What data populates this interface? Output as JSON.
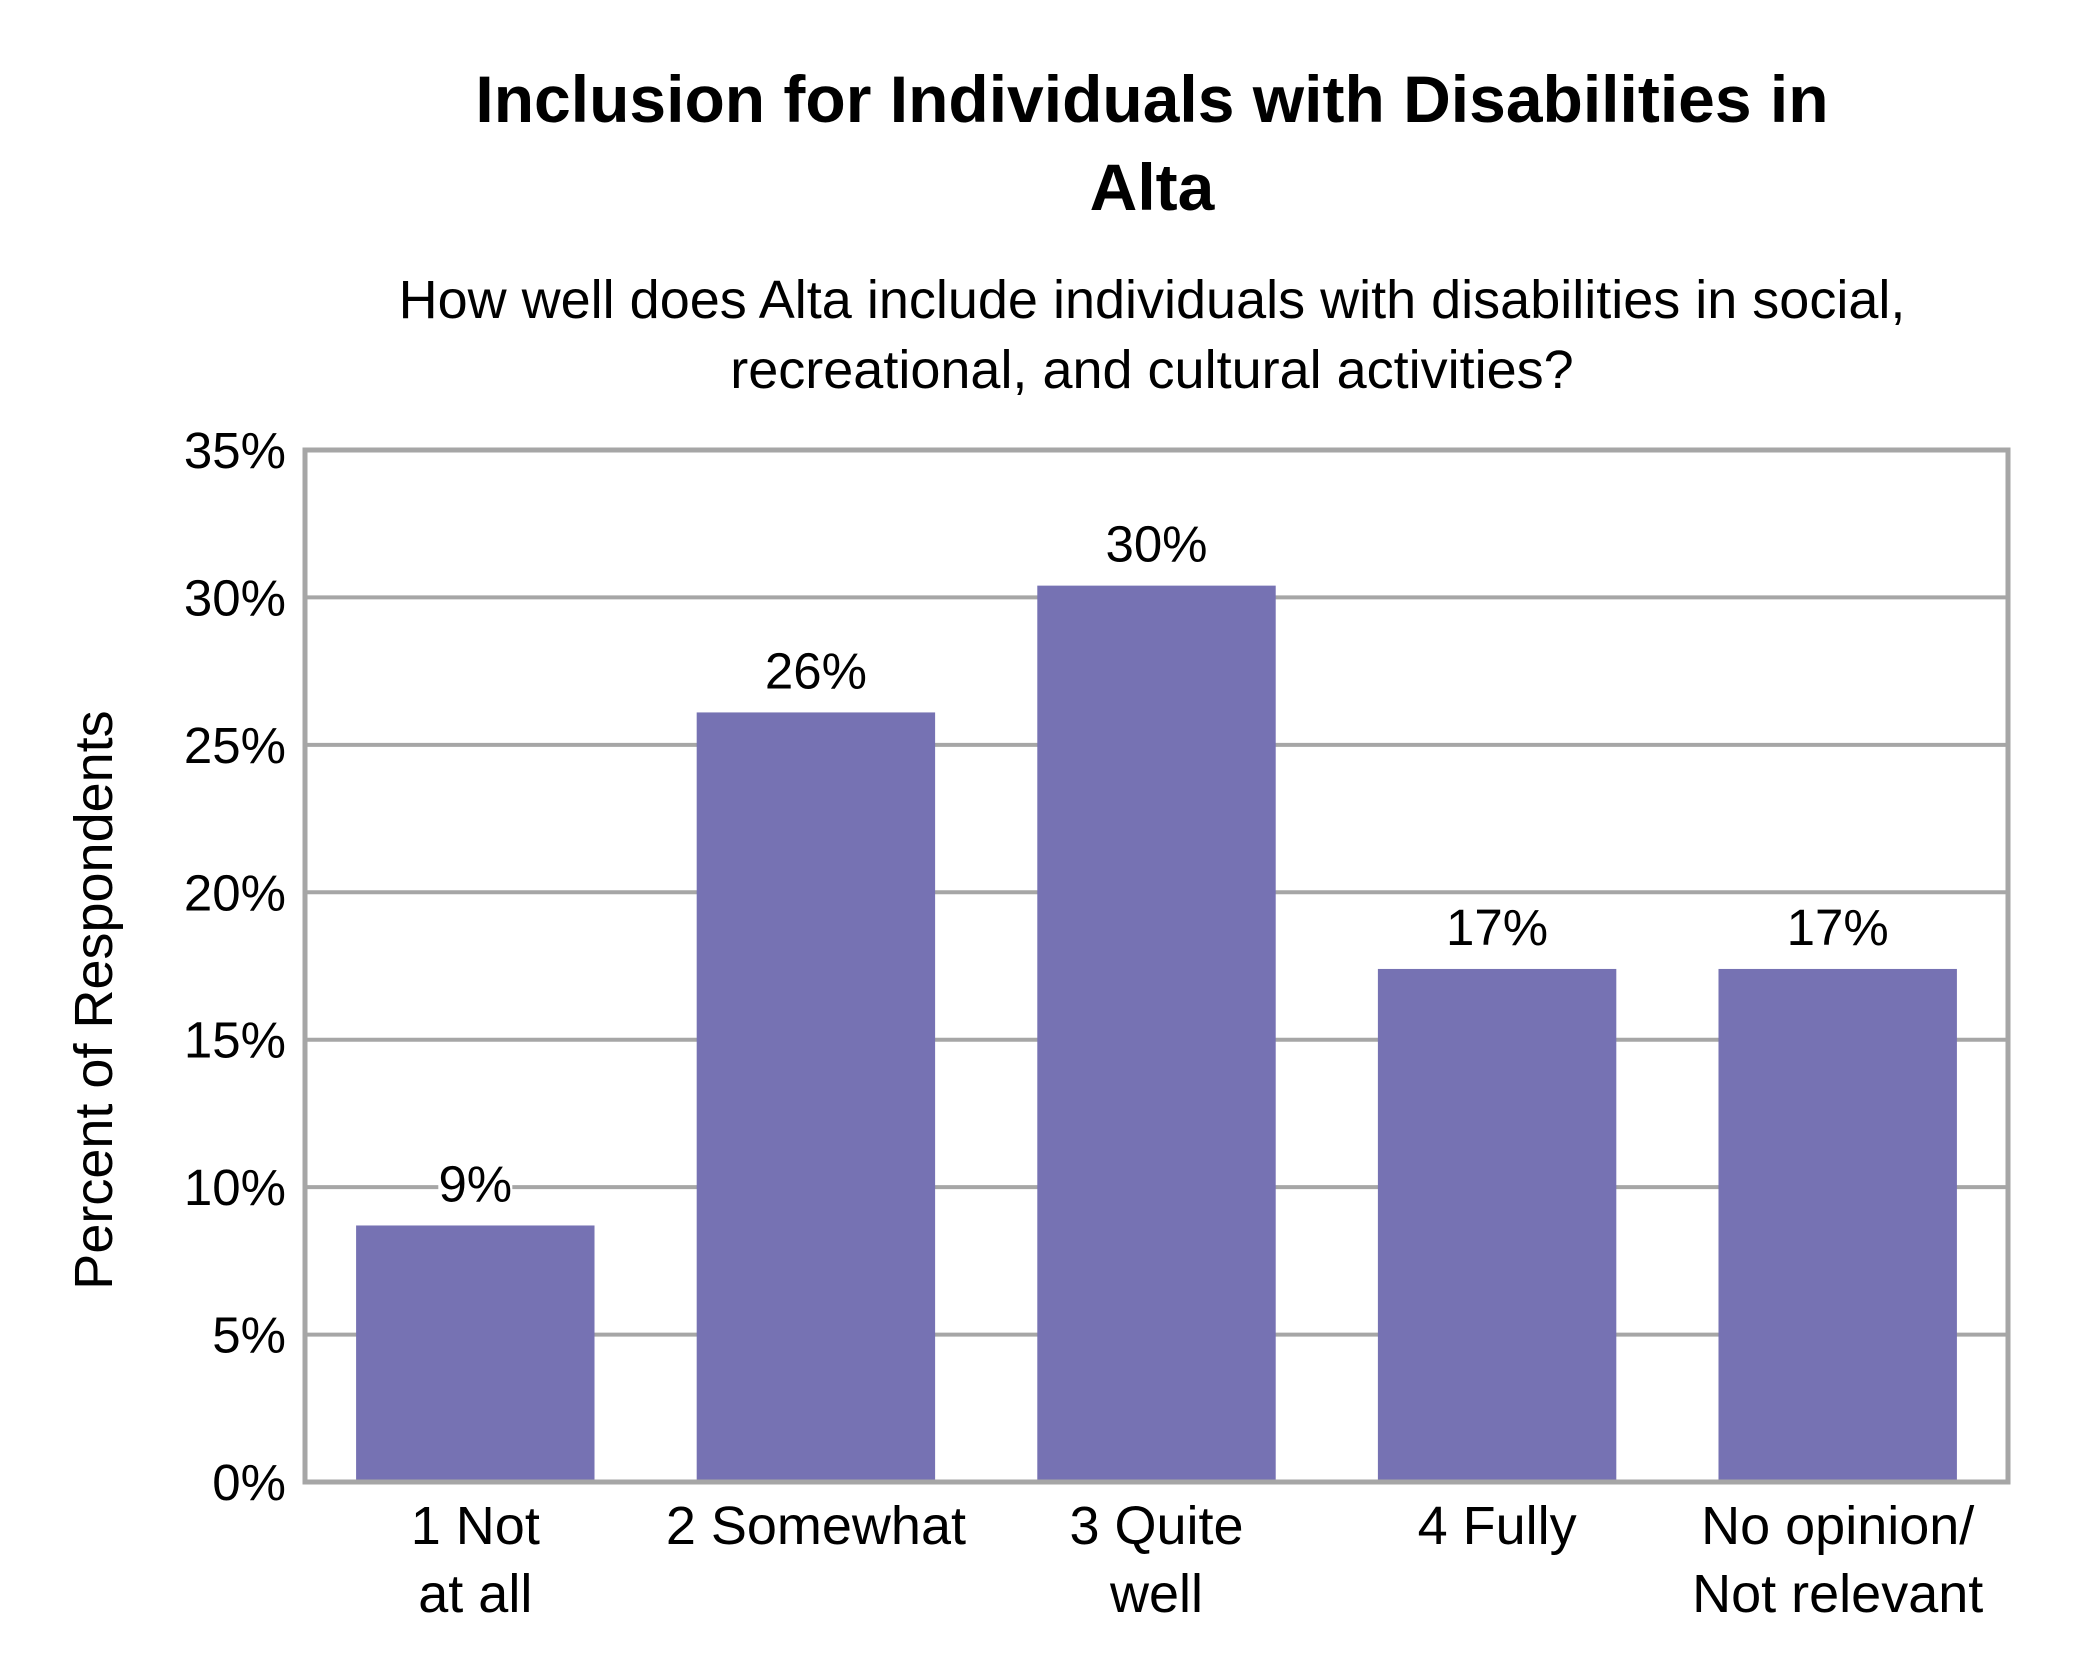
{
  "chart_data": {
    "type": "bar",
    "title": [
      "Inclusion for Individuals with Disabilities in",
      "Alta"
    ],
    "subtitle": [
      "How well does Alta include individuals with disabilities in social,",
      "recreational, and cultural activities?"
    ],
    "ylabel": "Percent of Respondents",
    "xlabel": "",
    "ylim": [
      0,
      35
    ],
    "y_ticks": [
      "0%",
      "5%",
      "10%",
      "15%",
      "20%",
      "25%",
      "30%",
      "35%"
    ],
    "categories": [
      [
        "1 Not",
        "at all"
      ],
      [
        "2 Somewhat"
      ],
      [
        "3 Quite",
        "well"
      ],
      [
        "4 Fully"
      ],
      [
        "No opinion/",
        "Not relevant"
      ]
    ],
    "values": [
      8.7,
      26.1,
      30.4,
      17.4,
      17.4
    ],
    "data_labels": [
      "9%",
      "26%",
      "30%",
      "17%",
      "17%"
    ],
    "bar_color": "#7672b3",
    "gridlines": true,
    "legend": "none"
  }
}
